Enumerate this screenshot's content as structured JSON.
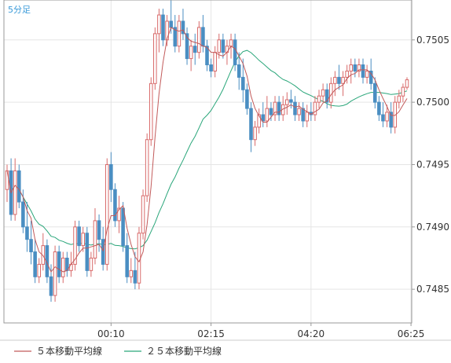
{
  "chart_data": {
    "type": "candlestick",
    "timeframe_label": "5分足",
    "y_ticks": [
      "0.7505",
      "0.7500",
      "0.7495",
      "0.7490",
      "0.7485"
    ],
    "y_tick_values": [
      0.7505,
      0.75,
      0.7495,
      0.749,
      0.7485
    ],
    "x_ticks": [
      "00:10",
      "02:15",
      "04:20",
      "06:25"
    ],
    "x_tick_index": [
      26,
      51,
      76,
      101
    ],
    "ylim": [
      0.74823,
      0.75082
    ],
    "grid": true,
    "colors": {
      "up": "#d86a6a",
      "down": "#4a8ec2",
      "ma5": "#c25a5a",
      "ma25": "#2aa67a",
      "grid": "#e5e5e5",
      "axis": "#999999"
    },
    "legend": [
      {
        "label": "５本移動平均線",
        "color": "#c25a5a"
      },
      {
        "label": "２５本移動平均線",
        "color": "#2aa67a"
      }
    ],
    "candles": [
      [
        0.7493,
        0.7495,
        0.7492,
        0.74945
      ],
      [
        0.74945,
        0.74955,
        0.74905,
        0.7491
      ],
      [
        0.7491,
        0.74955,
        0.74905,
        0.74945
      ],
      [
        0.74945,
        0.7495,
        0.74915,
        0.7492
      ],
      [
        0.7492,
        0.7493,
        0.74895,
        0.749
      ],
      [
        0.749,
        0.7492,
        0.7488,
        0.7489
      ],
      [
        0.7489,
        0.74905,
        0.7487,
        0.7488
      ],
      [
        0.7488,
        0.7489,
        0.74855,
        0.7486
      ],
      [
        0.7486,
        0.74875,
        0.74855,
        0.7487
      ],
      [
        0.7487,
        0.74895,
        0.74865,
        0.74885
      ],
      [
        0.74885,
        0.7489,
        0.74855,
        0.7486
      ],
      [
        0.7486,
        0.7487,
        0.7484,
        0.74845
      ],
      [
        0.74845,
        0.74885,
        0.7484,
        0.7488
      ],
      [
        0.7488,
        0.74885,
        0.74855,
        0.7486
      ],
      [
        0.7486,
        0.7488,
        0.74855,
        0.74875
      ],
      [
        0.74875,
        0.7488,
        0.7486,
        0.74865
      ],
      [
        0.74865,
        0.7488,
        0.7486,
        0.7487
      ],
      [
        0.7487,
        0.74905,
        0.74865,
        0.749
      ],
      [
        0.749,
        0.74905,
        0.7488,
        0.74885
      ],
      [
        0.74885,
        0.749,
        0.7488,
        0.74895
      ],
      [
        0.74895,
        0.749,
        0.7486,
        0.74865
      ],
      [
        0.74865,
        0.7488,
        0.7486,
        0.74875
      ],
      [
        0.74875,
        0.74915,
        0.7487,
        0.74905
      ],
      [
        0.74905,
        0.7491,
        0.7488,
        0.7489
      ],
      [
        0.7489,
        0.749,
        0.74865,
        0.7487
      ],
      [
        0.7487,
        0.74955,
        0.74865,
        0.7495
      ],
      [
        0.7495,
        0.7496,
        0.7492,
        0.7493
      ],
      [
        0.7493,
        0.74935,
        0.749,
        0.74905
      ],
      [
        0.74905,
        0.74925,
        0.74895,
        0.74915
      ],
      [
        0.74915,
        0.7492,
        0.7488,
        0.74885
      ],
      [
        0.74885,
        0.74895,
        0.74855,
        0.7486
      ],
      [
        0.7486,
        0.74875,
        0.74855,
        0.74865
      ],
      [
        0.74865,
        0.7488,
        0.7485,
        0.74855
      ],
      [
        0.74855,
        0.749,
        0.7485,
        0.74895
      ],
      [
        0.74895,
        0.7493,
        0.7489,
        0.74925
      ],
      [
        0.74925,
        0.74975,
        0.7492,
        0.7497
      ],
      [
        0.7497,
        0.7502,
        0.74965,
        0.75015
      ],
      [
        0.75015,
        0.7506,
        0.7501,
        0.75055
      ],
      [
        0.75055,
        0.75075,
        0.7504,
        0.7507
      ],
      [
        0.7507,
        0.75075,
        0.75045,
        0.7505
      ],
      [
        0.7505,
        0.7507,
        0.75045,
        0.75065
      ],
      [
        0.75065,
        0.75085,
        0.75055,
        0.7506
      ],
      [
        0.7506,
        0.7507,
        0.7504,
        0.75045
      ],
      [
        0.75045,
        0.7507,
        0.7504,
        0.75065
      ],
      [
        0.75065,
        0.75075,
        0.7505,
        0.75055
      ],
      [
        0.75055,
        0.7506,
        0.7503,
        0.75035
      ],
      [
        0.75035,
        0.7505,
        0.75025,
        0.75045
      ],
      [
        0.75045,
        0.75055,
        0.7503,
        0.7504
      ],
      [
        0.7504,
        0.75065,
        0.75035,
        0.7506
      ],
      [
        0.7506,
        0.7507,
        0.7504,
        0.75045
      ],
      [
        0.75045,
        0.7505,
        0.75025,
        0.7503
      ],
      [
        0.7503,
        0.75035,
        0.7502,
        0.75025
      ],
      [
        0.75025,
        0.75045,
        0.7502,
        0.7504
      ],
      [
        0.7504,
        0.75055,
        0.75035,
        0.7505
      ],
      [
        0.7505,
        0.75055,
        0.75035,
        0.7504
      ],
      [
        0.7504,
        0.7505,
        0.7503,
        0.75045
      ],
      [
        0.75045,
        0.75055,
        0.75035,
        0.7505
      ],
      [
        0.7505,
        0.75055,
        0.75025,
        0.7503
      ],
      [
        0.7503,
        0.7504,
        0.7501,
        0.7502
      ],
      [
        0.7502,
        0.75035,
        0.75,
        0.7501
      ],
      [
        0.7501,
        0.75015,
        0.7499,
        0.74995
      ],
      [
        0.74995,
        0.75,
        0.7496,
        0.7497
      ],
      [
        0.7497,
        0.74985,
        0.74965,
        0.7498
      ],
      [
        0.7498,
        0.74995,
        0.74975,
        0.7499
      ],
      [
        0.7499,
        0.75,
        0.7498,
        0.74985
      ],
      [
        0.74985,
        0.75005,
        0.7498,
        0.74995
      ],
      [
        0.74995,
        0.75,
        0.74985,
        0.7499
      ],
      [
        0.7499,
        0.75005,
        0.74985,
        0.75
      ],
      [
        0.75,
        0.75005,
        0.74985,
        0.7499
      ],
      [
        0.7499,
        0.75005,
        0.74985,
        0.74998
      ],
      [
        0.74998,
        0.75008,
        0.7499,
        0.75002
      ],
      [
        0.75002,
        0.7501,
        0.74995,
        0.75
      ],
      [
        0.75,
        0.75005,
        0.74985,
        0.7499
      ],
      [
        0.7499,
        0.75,
        0.74985,
        0.74995
      ],
      [
        0.74995,
        0.75,
        0.7498,
        0.74985
      ],
      [
        0.74985,
        0.74998,
        0.7498,
        0.74992
      ],
      [
        0.74992,
        0.75,
        0.74985,
        0.7499
      ],
      [
        0.7499,
        0.75005,
        0.74985,
        0.75
      ],
      [
        0.75,
        0.7501,
        0.74995,
        0.75005
      ],
      [
        0.75005,
        0.75015,
        0.75,
        0.7501
      ],
      [
        0.7501,
        0.75015,
        0.74995,
        0.75
      ],
      [
        0.75,
        0.7502,
        0.74995,
        0.75015
      ],
      [
        0.75015,
        0.75025,
        0.75005,
        0.7502
      ],
      [
        0.7502,
        0.7503,
        0.7501,
        0.75015
      ],
      [
        0.75015,
        0.75025,
        0.75005,
        0.7502
      ],
      [
        0.7502,
        0.7503,
        0.75015,
        0.75025
      ],
      [
        0.75025,
        0.75035,
        0.75015,
        0.7503
      ],
      [
        0.7503,
        0.75035,
        0.7502,
        0.75025
      ],
      [
        0.75025,
        0.75035,
        0.7502,
        0.7503
      ],
      [
        0.7503,
        0.75035,
        0.75015,
        0.7502
      ],
      [
        0.7502,
        0.7503,
        0.75015,
        0.75025
      ],
      [
        0.75025,
        0.75035,
        0.7501,
        0.75015
      ],
      [
        0.75015,
        0.7502,
        0.74995,
        0.75
      ],
      [
        0.75,
        0.75005,
        0.74985,
        0.7499
      ],
      [
        0.7499,
        0.75,
        0.7498,
        0.74985
      ],
      [
        0.74985,
        0.74998,
        0.7498,
        0.74992
      ],
      [
        0.74992,
        0.75,
        0.74975,
        0.7498
      ],
      [
        0.7498,
        0.75005,
        0.74975,
        0.75
      ],
      [
        0.75,
        0.7501,
        0.74995,
        0.75005
      ],
      [
        0.75005,
        0.75015,
        0.75,
        0.75012
      ],
      [
        0.75012,
        0.7502,
        0.7501,
        0.75018
      ]
    ]
  }
}
